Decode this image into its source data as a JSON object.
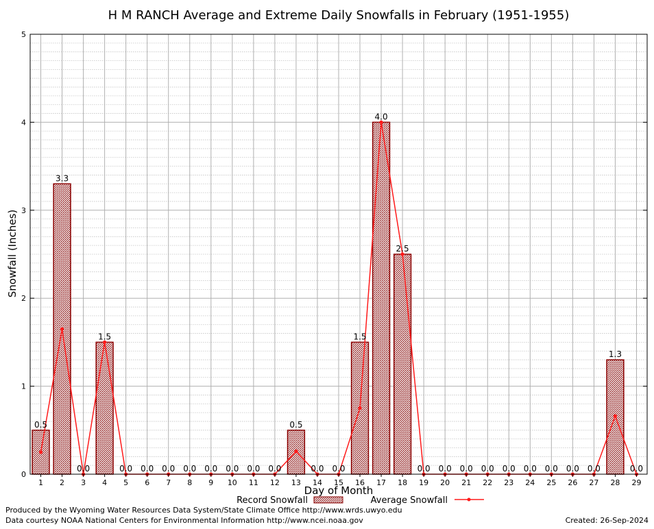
{
  "chart_data": {
    "type": "bar",
    "title": "H M RANCH Average and Extreme Daily Snowfalls in February (1951-1955)",
    "xlabel": "Day of Month",
    "ylabel": "Snowfall (Inches)",
    "ylim": [
      0,
      5
    ],
    "yticks": [
      "0",
      "1",
      "2",
      "3",
      "4",
      "5"
    ],
    "categories": [
      "1",
      "2",
      "3",
      "4",
      "5",
      "6",
      "7",
      "8",
      "9",
      "10",
      "11",
      "12",
      "13",
      "14",
      "15",
      "16",
      "17",
      "18",
      "19",
      "20",
      "21",
      "22",
      "23",
      "24",
      "25",
      "26",
      "27",
      "28",
      "29"
    ],
    "series": [
      {
        "name": "Record Snowfall",
        "kind": "bar",
        "values": [
          0.5,
          3.3,
          0.0,
          1.5,
          0.0,
          0.0,
          0.0,
          0.0,
          0.0,
          0.0,
          0.0,
          0.0,
          0.5,
          0.0,
          0.0,
          1.5,
          4.0,
          2.5,
          0.0,
          0.0,
          0.0,
          0.0,
          0.0,
          0.0,
          0.0,
          0.0,
          0.0,
          1.3,
          0.0
        ],
        "labels": [
          "0.5",
          "3.3",
          "0.0",
          "1.5",
          "0.0",
          "0.0",
          "0.0",
          "0.0",
          "0.0",
          "0.0",
          "0.0",
          "0.0",
          "0.5",
          "0.0",
          "0.0",
          "1.5",
          "4.0",
          "2.5",
          "0.0",
          "0.0",
          "0.0",
          "0.0",
          "0.0",
          "0.0",
          "0.0",
          "0.0",
          "0.0",
          "1.3",
          "0.0"
        ]
      },
      {
        "name": "Average Snowfall",
        "kind": "line",
        "values": [
          0.25,
          1.65,
          0.0,
          1.5,
          0.0,
          0.0,
          0.0,
          0.0,
          0.0,
          0.0,
          0.0,
          0.0,
          0.26,
          0.0,
          0.0,
          0.75,
          4.0,
          2.5,
          0.0,
          0.0,
          0.0,
          0.0,
          0.0,
          0.0,
          0.0,
          0.0,
          0.0,
          0.66,
          0.0
        ]
      }
    ],
    "grid": true,
    "legend_position": "bottom-center",
    "colors": {
      "bar_stroke": "#8b0000",
      "bar_fill": "#c8a8a8",
      "line": "#ff1a1a",
      "grid": "#b0b0b0"
    }
  },
  "footer": {
    "produced_by": "Produced by the Wyoming Water Resources Data System/State Climate Office http://www.wrds.uwyo.edu",
    "courtesy": "Data courtesy NOAA National Centers for Environmental Information http://www.ncei.noaa.gov",
    "created": "Created:  26-Sep-2024"
  }
}
